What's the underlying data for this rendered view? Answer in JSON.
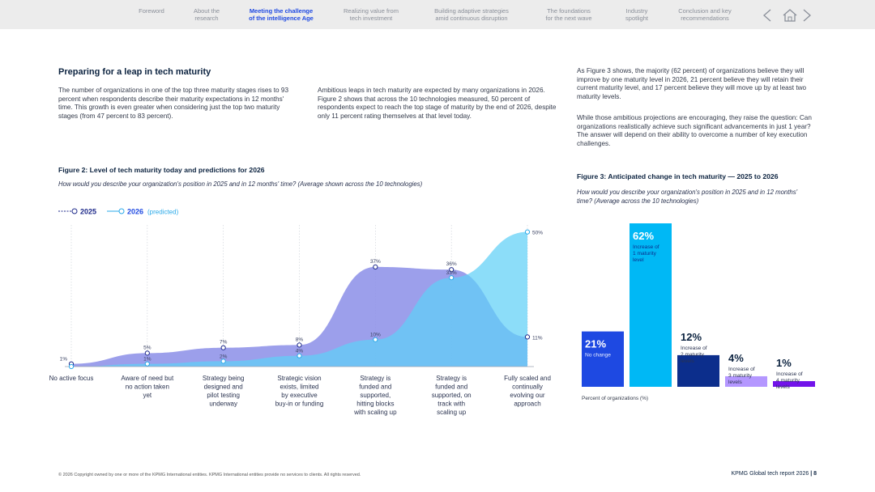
{
  "nav": {
    "items": [
      {
        "label": "Foreword",
        "active": false
      },
      {
        "label": "About the\nresearch",
        "active": false
      },
      {
        "label": "Meeting the challenge\nof the intelligence Age",
        "active": true
      },
      {
        "label": "Realizing value from\ntech investment",
        "active": false
      },
      {
        "label": "Building adaptive strategies\namid continuous disruption",
        "active": false
      },
      {
        "label": "The foundations\nfor the next wave",
        "active": false
      },
      {
        "label": "Industry\nspotlight",
        "active": false
      },
      {
        "label": "Conclusion and key\nrecommendations",
        "active": false
      }
    ],
    "icons": [
      "prev-arrow-icon",
      "home-icon",
      "next-arrow-icon"
    ]
  },
  "section": {
    "title": "Preparing for a leap in tech maturity",
    "para1": "The number of organizations in one of the top three maturity stages rises to 93 percent when respondents describe their maturity expectations in 12 months' time. This growth is even greater when considering just the top two maturity stages (from 47 percent to 83 percent).",
    "para2": "Ambitious leaps in tech maturity are expected by many organizations in 2026. Figure 2 shows that across the 10 technologies measured, 50 percent of respondents expect to reach the top stage of maturity by the end of 2026, despite only 11 percent rating themselves at that level today.",
    "para3": "As Figure 3 shows, the majority (62 percent) of organizations believe they will improve by one maturity level in 2026, 21 percent believe they will retain their current maturity level, and 17 percent believe they will move up by at least two maturity levels.",
    "para4": "While those ambitious projections are encouraging, they raise the question: Can organizations realistically achieve such significant advancements in just 1 year? The answer will depend on their ability to overcome a number of key execution challenges."
  },
  "fig2": {
    "title": "Figure 2: Level of tech maturity today and predictions for 2026",
    "subtitle": "How would you describe your organization's position in 2025 and in 12 months' time? (Average shown across the 10 technologies)",
    "legend_2025": "2025",
    "legend_2026": "2026",
    "legend_2026_note": "(predicted)"
  },
  "fig3": {
    "title": "Figure 3: Anticipated change in tech maturity — 2025 to 2026",
    "subtitle": "How would you describe your organization's position in 2025 and in 12 months' time? (Average across the 10 technologies)",
    "axis_note": "Percent of organizations (%)"
  },
  "chart_data": [
    {
      "type": "area",
      "title": "Figure 2: Level of tech maturity today and predictions for 2026",
      "categories": [
        "No active focus",
        "Aware of need but no action taken yet",
        "Strategy being designed and pilot testing underway",
        "Strategic vision exists, limited by executive buy-in or funding",
        "Strategy is funded and supported, hitting blocks with scaling up",
        "Strategy is funded and supported, on track with scaling up",
        "Fully scaled and continually evolving our approach"
      ],
      "series": [
        {
          "name": "2025",
          "values": [
            1,
            5,
            7,
            8,
            37,
            36,
            11
          ],
          "labels": [
            "1%",
            "5%",
            "7%",
            "8%",
            "37%",
            "36%",
            "11%"
          ],
          "color": "#7b80e6"
        },
        {
          "name": "2026 (predicted)",
          "values": [
            0,
            1,
            2,
            4,
            10,
            33,
            50
          ],
          "labels": [
            "",
            "1%",
            "2%",
            "4%",
            "10%",
            "33%",
            "50%"
          ],
          "color": "#6fd4f5"
        }
      ],
      "ylim": [
        0,
        55
      ]
    },
    {
      "type": "bar",
      "title": "Figure 3: Anticipated change in tech maturity — 2025 to 2026",
      "categories": [
        "No change",
        "Increase of 1 maturity level",
        "Increase of 2 maturity levels",
        "Increase of 3 maturity levels",
        "Increase of 4 maturity levels"
      ],
      "values": [
        21,
        62,
        12,
        4,
        1
      ],
      "labels": [
        "21%",
        "62%",
        "12%",
        "4%",
        "1%"
      ],
      "colors": [
        "#1e49e2",
        "#00b8f5",
        "#0c2e8c",
        "#b497ff",
        "#7213ea"
      ],
      "ylabel": "Percent of organizations (%)",
      "ylim": [
        0,
        62
      ]
    }
  ],
  "footer": {
    "copyright": "© 2026 Copyright owned by one or more of the KPMG International entities. KPMG International entities provide no services to clients. All rights reserved.",
    "report": "KPMG Global tech report 2026",
    "page": "8"
  }
}
